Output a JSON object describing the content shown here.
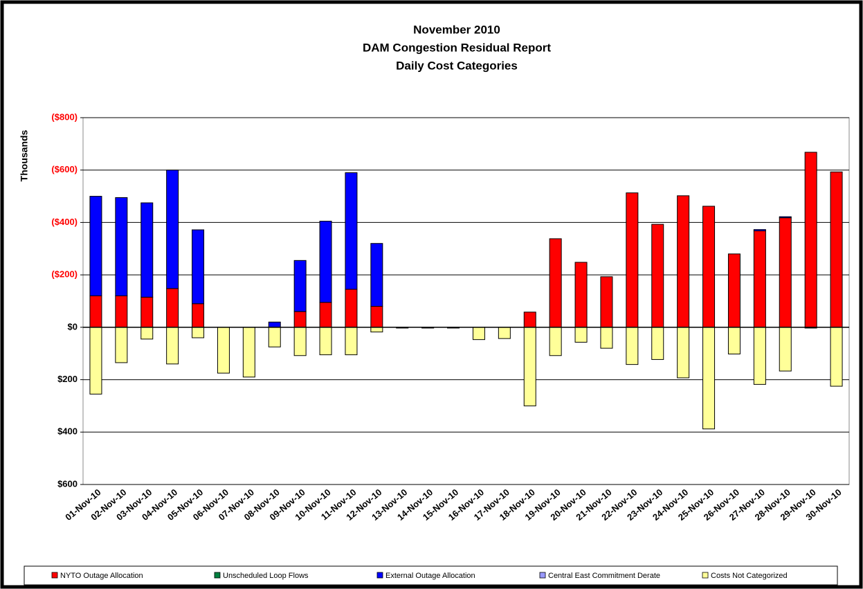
{
  "chart_data": {
    "type": "stacked_bar",
    "title_lines": [
      "November 2010",
      "DAM Congestion Residual Report",
      "Daily Cost Categories"
    ],
    "y_label": "Thousands",
    "categories": [
      "01-Nov-10",
      "02-Nov-10",
      "03-Nov-10",
      "04-Nov-10",
      "05-Nov-10",
      "06-Nov-10",
      "07-Nov-10",
      "08-Nov-10",
      "09-Nov-10",
      "10-Nov-10",
      "11-Nov-10",
      "12-Nov-10",
      "13-Nov-10",
      "14-Nov-10",
      "15-Nov-10",
      "16-Nov-10",
      "17-Nov-10",
      "18-Nov-10",
      "19-Nov-10",
      "20-Nov-10",
      "21-Nov-10",
      "22-Nov-10",
      "23-Nov-10",
      "24-Nov-10",
      "25-Nov-10",
      "26-Nov-10",
      "27-Nov-10",
      "28-Nov-10",
      "29-Nov-10",
      "30-Nov-10"
    ],
    "series": [
      {
        "name": "NYTO Outage Allocation",
        "color": "#ff0000",
        "values": [
          -120,
          -120,
          -115,
          -148,
          -90,
          0,
          0,
          0,
          -60,
          -95,
          -145,
          -80,
          0,
          0,
          0,
          0,
          0,
          -58,
          -338,
          -248,
          -193,
          -513,
          -393,
          -502,
          -462,
          -280,
          -368,
          -418,
          -668,
          -593
        ]
      },
      {
        "name": "Unscheduled Loop Flows",
        "color": "#008040",
        "values": [
          0,
          0,
          0,
          0,
          0,
          0,
          0,
          0,
          0,
          0,
          0,
          0,
          0,
          0,
          0,
          0,
          0,
          0,
          0,
          0,
          0,
          0,
          0,
          0,
          0,
          0,
          0,
          0,
          0,
          0
        ]
      },
      {
        "name": "External Outage Allocation",
        "color": "#0000ff",
        "values": [
          -380,
          -375,
          -360,
          -452,
          -282,
          0,
          0,
          -20,
          -195,
          -310,
          -445,
          -240,
          0,
          0,
          0,
          0,
          0,
          0,
          0,
          0,
          0,
          0,
          0,
          0,
          0,
          0,
          -5,
          -4,
          0,
          0
        ]
      },
      {
        "name": "Central East Commitment Derate",
        "color": "#9999ff",
        "values": [
          0,
          0,
          0,
          0,
          0,
          0,
          0,
          0,
          0,
          0,
          0,
          0,
          0,
          0,
          0,
          0,
          0,
          0,
          0,
          0,
          0,
          0,
          0,
          0,
          0,
          0,
          0,
          0,
          0,
          0
        ]
      },
      {
        "name": "Costs Not Categorized",
        "color": "#ffff99",
        "values": [
          255,
          135,
          45,
          140,
          40,
          175,
          190,
          75,
          108,
          105,
          105,
          18,
          3,
          3,
          3,
          47,
          43,
          300,
          108,
          57,
          80,
          142,
          123,
          193,
          388,
          102,
          218,
          167,
          3,
          225
        ]
      }
    ],
    "ylim": [
      600,
      -800
    ],
    "yticks": [
      {
        "value": -800,
        "label": "($800)"
      },
      {
        "value": -600,
        "label": "($600)"
      },
      {
        "value": -400,
        "label": "($400)"
      },
      {
        "value": -200,
        "label": "($200)"
      },
      {
        "value": 0,
        "label": "$0"
      },
      {
        "value": 200,
        "label": "$200"
      },
      {
        "value": 400,
        "label": "$400"
      },
      {
        "value": 600,
        "label": "$600"
      }
    ],
    "grid": true
  }
}
